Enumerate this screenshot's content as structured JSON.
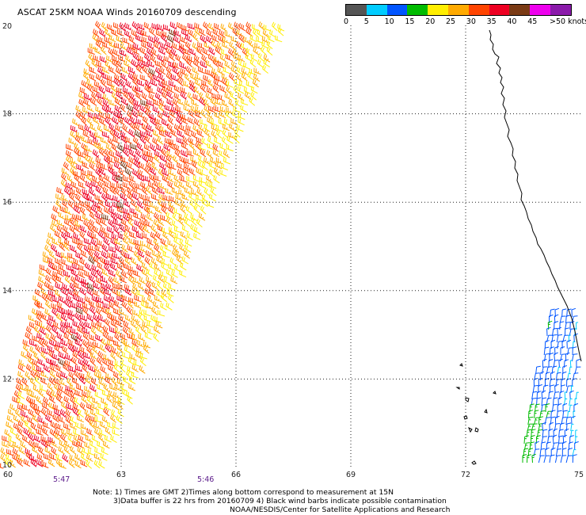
{
  "title": "ASCAT 25KM NOAA Winds 20160709 descending",
  "legend": {
    "colors": [
      "#555555",
      "#00ccff",
      "#0055ff",
      "#00bb00",
      "#ffee00",
      "#ffaa00",
      "#ff4400",
      "#ee0022",
      "#7a3a14",
      "#ee00ee",
      "#8a1aaa"
    ],
    "labels": [
      "0",
      "5",
      "10",
      "15",
      "20",
      "25",
      "30",
      "35",
      "40",
      "45",
      ">50 knots"
    ]
  },
  "axes": {
    "lon_ticks": [
      "60",
      "63",
      "66",
      "69",
      "72",
      "75"
    ],
    "lat_ticks": [
      "20",
      "18",
      "16",
      "14",
      "12",
      "10"
    ],
    "lon_range": [
      60,
      75
    ],
    "lat_range": [
      10,
      20
    ],
    "grid": true
  },
  "times": [
    "5:47",
    "5:46"
  ],
  "notes": [
    "Note: 1) Times are GMT 2)Times along bottom correspond to measurement at 15N",
    "3)Data buffer is 22 hrs from 20160709 4) Black wind barbs indicate possible contamination",
    "NOAA/NESDIS/Center for Satellite Applications and Research"
  ],
  "swaths": [
    {
      "name": "main-swath",
      "speed_knots": [
        20,
        40
      ],
      "direction": "southwest"
    },
    {
      "name": "coastal-swath",
      "speed_knots": [
        5,
        20
      ],
      "direction": "north"
    }
  ]
}
